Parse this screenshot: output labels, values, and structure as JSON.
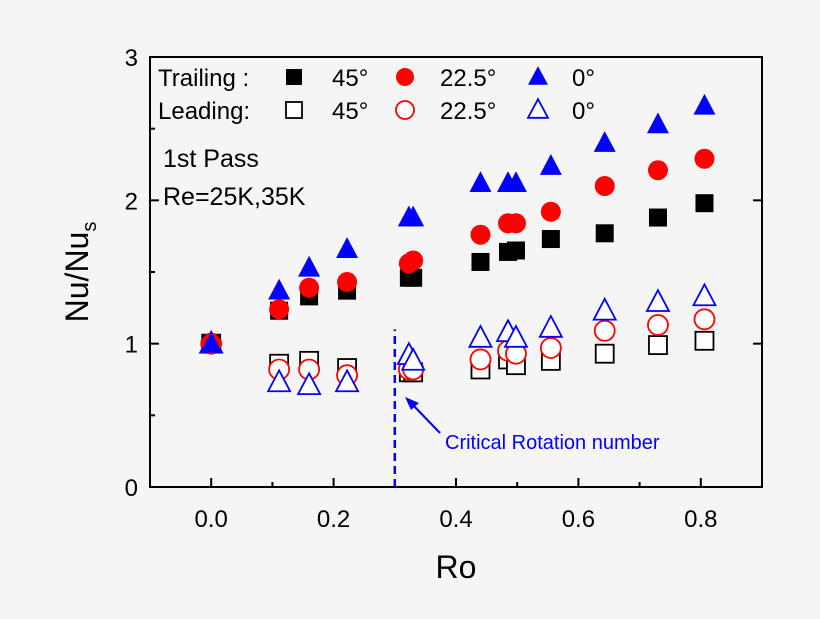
{
  "chart_data": {
    "type": "scatter",
    "xlabel": "Ro",
    "ylabel": "Nu/Nu",
    "ylabel_sub": "s",
    "xlim": [
      -0.1,
      0.9
    ],
    "ylim": [
      0,
      3
    ],
    "xticks": [
      "0.0",
      "0.2",
      "0.4",
      "0.6",
      "0.8"
    ],
    "xtick_values": [
      0,
      0.2,
      0.4,
      0.6,
      0.8
    ],
    "yticks": [
      "0",
      "1",
      "2",
      "3"
    ],
    "ytick_values": [
      0,
      1,
      2,
      3
    ],
    "legend": {
      "row_labels": [
        "Trailing :",
        "Leading:"
      ],
      "angle_labels": [
        "45°",
        "22.5°",
        "0°"
      ],
      "placement": "top-left"
    },
    "annotations": {
      "pass": "1st Pass",
      "re": "Re=25K,35K",
      "critical": "Critical Rotation number",
      "critical_x": 0.3
    },
    "colors": {
      "black": "#000000",
      "red": "#ff0000",
      "blue": "#0000ff"
    },
    "series": [
      {
        "name": "Trailing 45°",
        "marker": "square",
        "filled": true,
        "color": "#000000",
        "x": [
          0,
          0.111,
          0.16,
          0.222,
          0.323,
          0.33,
          0.44,
          0.485,
          0.498,
          0.555,
          0.643,
          0.73,
          0.806
        ],
        "y": [
          1.0,
          1.23,
          1.33,
          1.37,
          1.46,
          1.46,
          1.57,
          1.64,
          1.65,
          1.73,
          1.77,
          1.88,
          1.98
        ]
      },
      {
        "name": "Trailing 22.5°",
        "marker": "circle",
        "filled": true,
        "color": "#ff0000",
        "x": [
          0,
          0.111,
          0.16,
          0.222,
          0.323,
          0.33,
          0.44,
          0.485,
          0.498,
          0.555,
          0.643,
          0.73,
          0.806
        ],
        "y": [
          1.0,
          1.24,
          1.39,
          1.43,
          1.56,
          1.58,
          1.76,
          1.84,
          1.84,
          1.92,
          2.1,
          2.21,
          2.29
        ]
      },
      {
        "name": "Trailing 0°",
        "marker": "triangle",
        "filled": true,
        "color": "#0000ff",
        "x": [
          0,
          0.111,
          0.16,
          0.222,
          0.323,
          0.33,
          0.44,
          0.485,
          0.498,
          0.555,
          0.643,
          0.73,
          0.806
        ],
        "y": [
          1.0,
          1.37,
          1.53,
          1.66,
          1.88,
          1.88,
          2.12,
          2.12,
          2.12,
          2.24,
          2.4,
          2.53,
          2.66
        ]
      },
      {
        "name": "Leading 45°",
        "marker": "square",
        "filled": false,
        "color": "#000000",
        "x": [
          0,
          0.111,
          0.16,
          0.222,
          0.323,
          0.33,
          0.44,
          0.485,
          0.498,
          0.555,
          0.643,
          0.73,
          0.806
        ],
        "y": [
          1.0,
          0.86,
          0.88,
          0.83,
          0.8,
          0.8,
          0.82,
          0.89,
          0.85,
          0.88,
          0.93,
          0.99,
          1.02
        ]
      },
      {
        "name": "Leading 22.5°",
        "marker": "circle",
        "filled": false,
        "color": "#ff0000",
        "x": [
          0,
          0.111,
          0.16,
          0.222,
          0.323,
          0.33,
          0.44,
          0.485,
          0.498,
          0.555,
          0.643,
          0.73,
          0.806
        ],
        "y": [
          1.0,
          0.82,
          0.82,
          0.78,
          0.82,
          0.82,
          0.89,
          0.95,
          0.93,
          0.97,
          1.09,
          1.13,
          1.17
        ]
      },
      {
        "name": "Leading 0°",
        "marker": "triangle",
        "filled": false,
        "color": "#0000ff",
        "x": [
          0,
          0.111,
          0.16,
          0.222,
          0.323,
          0.33,
          0.44,
          0.485,
          0.498,
          0.555,
          0.643,
          0.73,
          0.806
        ],
        "y": [
          1.0,
          0.73,
          0.71,
          0.73,
          0.92,
          0.88,
          1.04,
          1.08,
          1.04,
          1.11,
          1.23,
          1.29,
          1.33
        ]
      }
    ]
  }
}
